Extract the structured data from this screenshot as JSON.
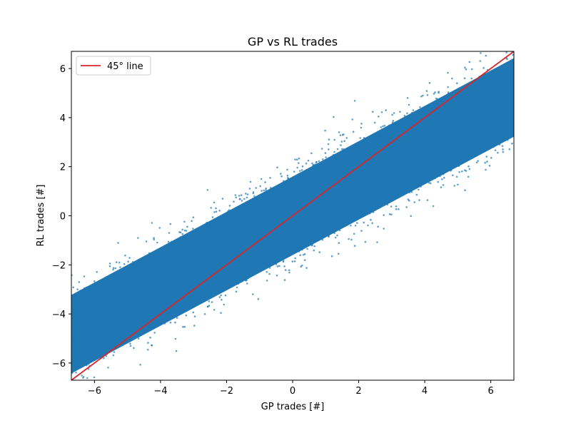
{
  "chart_data": {
    "type": "scatter",
    "title": "GP vs RL trades",
    "xlabel": "GP trades [#]",
    "ylabel": "RL trades [#]",
    "xlim": [
      -6.7,
      6.7
    ],
    "ylim": [
      -6.7,
      6.7
    ],
    "xticks": [
      -6,
      -4,
      -2,
      0,
      2,
      4,
      6
    ],
    "yticks": [
      -6,
      -4,
      -2,
      0,
      2,
      4,
      6
    ],
    "xtick_labels": [
      "−6",
      "−4",
      "−2",
      "0",
      "2",
      "4",
      "6"
    ],
    "ytick_labels": [
      "−6",
      "−4",
      "−2",
      "0",
      "2",
      "4",
      "6"
    ],
    "grid": false,
    "legend_position": "upper-left",
    "series": [
      {
        "kind": "scatter",
        "color": "#1f77b4",
        "description_of_trend": "dense cloud along y ≈ 0.7x, spread ±~1.5",
        "slope": 0.72,
        "intercept": 0.0,
        "spread": 1.6
      },
      {
        "kind": "line",
        "name": "45° line",
        "color": "#d62728",
        "x": [
          -6.7,
          6.7
        ],
        "y": [
          -6.7,
          6.7
        ]
      }
    ]
  }
}
